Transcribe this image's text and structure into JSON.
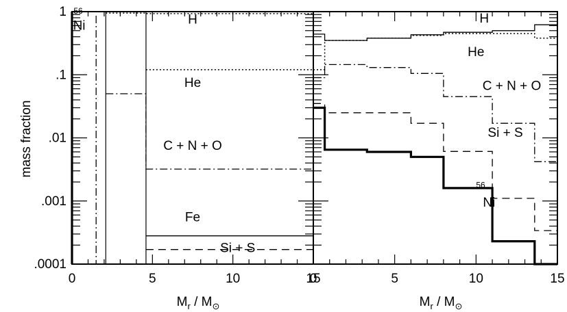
{
  "ylabel": "mass fraction",
  "chart_data": [
    {
      "type": "line",
      "panel": "left",
      "xlabel_main": "M",
      "xlabel_sub": "r",
      "xlabel_sep": "/",
      "xlabel_unit": "M",
      "xlabel_unit_sub": "⊙",
      "xlim": [
        0,
        15
      ],
      "ylim": [
        0.0001,
        1
      ],
      "yscale": "log",
      "x_ticks": [
        "0",
        "5",
        "10",
        "15"
      ],
      "y_ticks": [
        "1",
        ".1",
        ".01",
        ".001",
        ".0001"
      ],
      "grid": false,
      "series": [
        {
          "name": "H",
          "style": "dotted",
          "points": [
            [
              2.1,
              0.95
            ],
            [
              4.6,
              0.95
            ],
            [
              4.6,
              0.93
            ],
            [
              15,
              0.93
            ]
          ]
        },
        {
          "name": "He",
          "style": "dotted",
          "points": [
            [
              4.6,
              0.12
            ],
            [
              15,
              0.12
            ]
          ]
        },
        {
          "name": "C + N + O",
          "style": "dashdot",
          "points": [
            [
              2.1,
              0.05
            ],
            [
              4.6,
              0.05
            ],
            [
              4.6,
              0.0032
            ],
            [
              15,
              0.0032
            ]
          ]
        },
        {
          "name": "Fe",
          "style": "solid",
          "points": [
            [
              4.6,
              0.00028
            ],
            [
              15,
              0.00028
            ]
          ]
        },
        {
          "name": "Si + S",
          "style": "dashed",
          "points": [
            [
              4.6,
              0.00017
            ],
            [
              15,
              0.00017
            ]
          ]
        },
        {
          "name": "56Ni",
          "style": "thick",
          "points": [
            [
              0.0,
              0.0001
            ],
            [
              0.0,
              1.0
            ]
          ]
        }
      ],
      "annotations": [
        {
          "text": "H",
          "x": 7.5,
          "y": 0.75
        },
        {
          "text": "He",
          "x": 7.5,
          "y": 0.075
        },
        {
          "text": "C + N + O",
          "x": 7.5,
          "y": 0.0075
        },
        {
          "text": "Fe",
          "x": 7.5,
          "y": 0.00055
        },
        {
          "text": "Si + S",
          "x": 10.3,
          "y": 0.00018
        },
        {
          "text": "56",
          "sup": true,
          "x": 0.1,
          "y": 0.8
        },
        {
          "text": "Ni",
          "x": 0.45,
          "y": 0.6
        }
      ]
    },
    {
      "type": "line",
      "panel": "right",
      "xlabel_main": "M",
      "xlabel_sub": "r",
      "xlabel_sep": "/",
      "xlabel_unit": "M",
      "xlabel_unit_sub": "⊙",
      "xlim": [
        0,
        15
      ],
      "ylim": [
        0.0001,
        1
      ],
      "yscale": "log",
      "x_ticks": [
        "0",
        "5",
        "10",
        "15"
      ],
      "y_ticks": [],
      "grid": false,
      "series": [
        {
          "name": "H",
          "style": "solid",
          "points": [
            [
              0,
              0.44
            ],
            [
              0.7,
              0.44
            ],
            [
              0.7,
              0.35
            ],
            [
              3.3,
              0.35
            ],
            [
              3.3,
              0.38
            ],
            [
              6.0,
              0.38
            ],
            [
              6.0,
              0.43
            ],
            [
              8.0,
              0.43
            ],
            [
              8.0,
              0.47
            ],
            [
              11.0,
              0.47
            ],
            [
              11.0,
              0.5
            ],
            [
              13.6,
              0.5
            ],
            [
              13.6,
              0.62
            ],
            [
              15,
              0.62
            ]
          ]
        },
        {
          "name": "He",
          "style": "dotted",
          "points": [
            [
              0,
              0.12
            ],
            [
              0.7,
              0.12
            ],
            [
              0.7,
              0.35
            ],
            [
              3.3,
              0.35
            ],
            [
              3.3,
              0.38
            ],
            [
              6.0,
              0.38
            ],
            [
              6.0,
              0.42
            ],
            [
              8.0,
              0.42
            ],
            [
              8.0,
              0.45
            ],
            [
              11.0,
              0.45
            ],
            [
              11.0,
              0.45
            ],
            [
              13.6,
              0.45
            ],
            [
              13.6,
              0.38
            ],
            [
              15,
              0.38
            ]
          ]
        },
        {
          "name": "C + N + O",
          "style": "dashdot",
          "points": [
            [
              0,
              0.09
            ],
            [
              0.7,
              0.09
            ],
            [
              0.7,
              0.145
            ],
            [
              3.3,
              0.145
            ],
            [
              3.3,
              0.13
            ],
            [
              6.0,
              0.13
            ],
            [
              6.0,
              0.105
            ],
            [
              8.0,
              0.105
            ],
            [
              8.0,
              0.045
            ],
            [
              11.0,
              0.045
            ],
            [
              11.0,
              0.017
            ],
            [
              13.6,
              0.017
            ],
            [
              13.6,
              0.0042
            ],
            [
              15,
              0.0042
            ]
          ]
        },
        {
          "name": "Si + S",
          "style": "dashed",
          "points": [
            [
              0,
              0.035
            ],
            [
              0.7,
              0.035
            ],
            [
              0.7,
              0.025
            ],
            [
              6.0,
              0.025
            ],
            [
              6.0,
              0.017
            ],
            [
              8.0,
              0.017
            ],
            [
              8.0,
              0.0061
            ],
            [
              11.0,
              0.0061
            ],
            [
              11.0,
              0.0011
            ],
            [
              13.6,
              0.0011
            ],
            [
              13.6,
              0.00034
            ],
            [
              15,
              0.00034
            ]
          ]
        },
        {
          "name": "56Ni",
          "style": "thick",
          "points": [
            [
              0,
              0.03
            ],
            [
              0.7,
              0.03
            ],
            [
              0.7,
              0.0065
            ],
            [
              3.3,
              0.0065
            ],
            [
              3.3,
              0.006
            ],
            [
              6.0,
              0.006
            ],
            [
              6.0,
              0.005
            ],
            [
              8.0,
              0.005
            ],
            [
              8.0,
              0.0016
            ],
            [
              11.0,
              0.0016
            ],
            [
              11.0,
              0.00023
            ],
            [
              13.6,
              0.00023
            ],
            [
              13.6,
              0.0001
            ],
            [
              15,
              0.0001
            ]
          ]
        }
      ],
      "annotations": [
        {
          "text": "H",
          "x": 10.5,
          "y": 0.78
        },
        {
          "text": "He",
          "x": 10.0,
          "y": 0.23
        },
        {
          "text": "C + N + O",
          "x": 12.2,
          "y": 0.067
        },
        {
          "text": "Si + S",
          "x": 11.8,
          "y": 0.012
        },
        {
          "text": "56",
          "sup": true,
          "x": 10.0,
          "y": 0.0014
        },
        {
          "text": "Ni",
          "x": 10.8,
          "y": 0.00095
        }
      ]
    }
  ]
}
